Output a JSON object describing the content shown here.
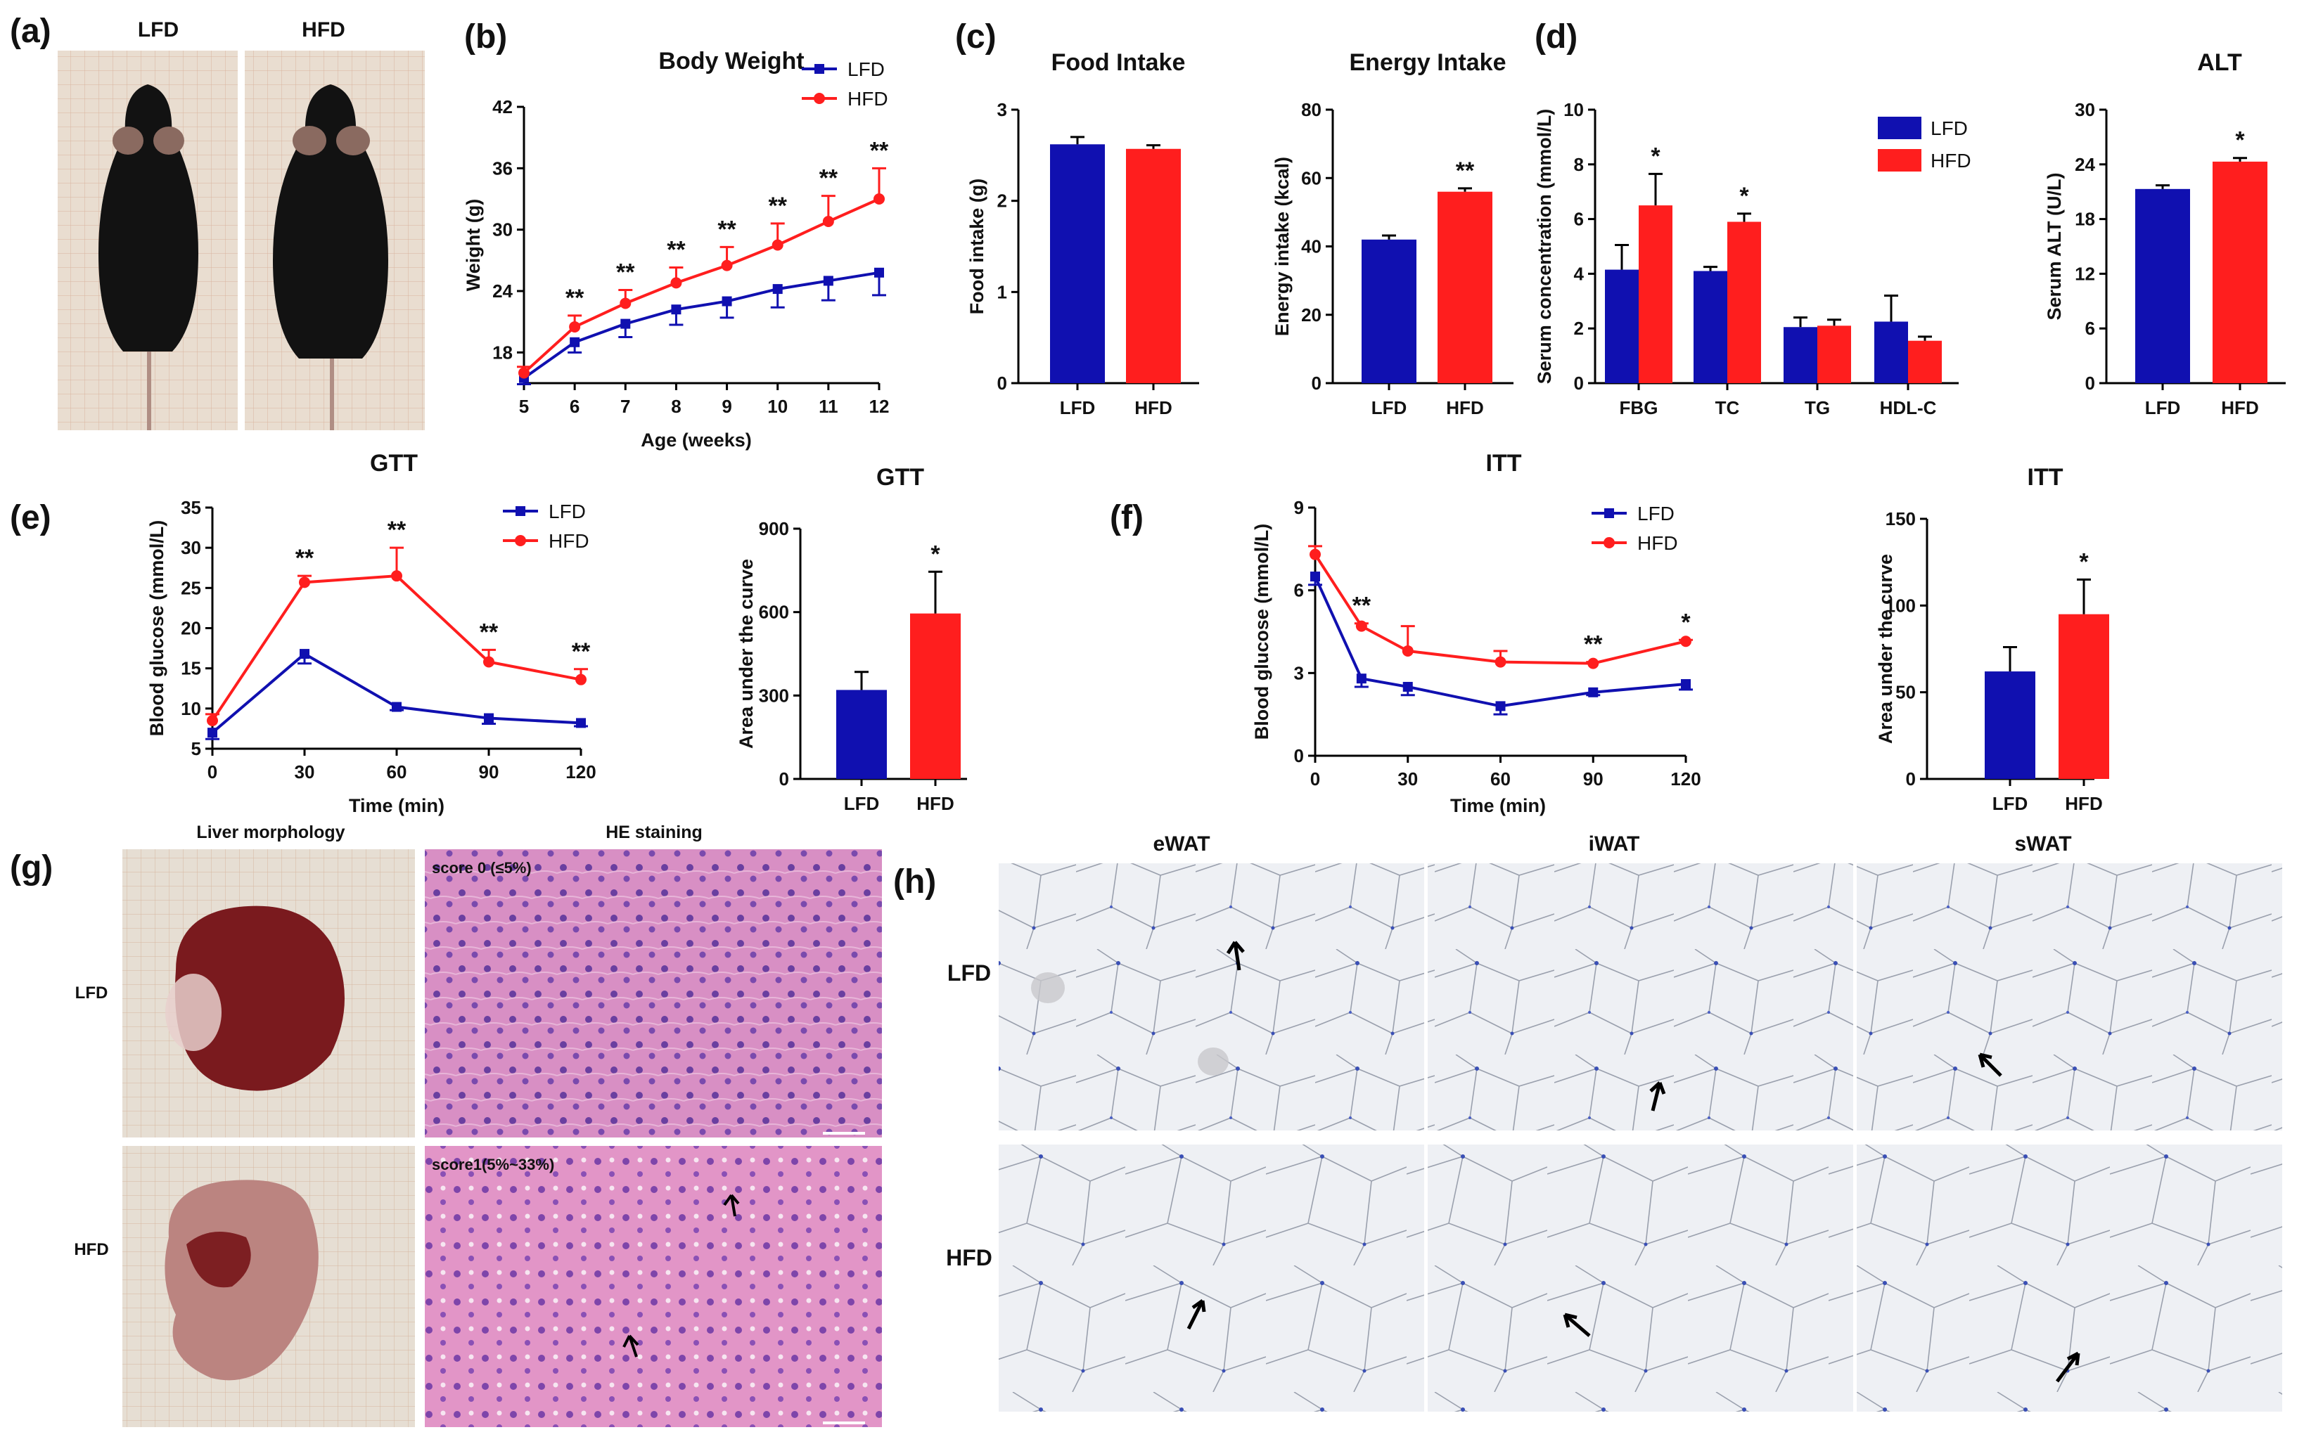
{
  "colors": {
    "lfd": "#1010b0",
    "hfd": "#ff1e1e",
    "axis": "#000000"
  },
  "panels": {
    "a": {
      "label": "(a)",
      "lfd": "LFD",
      "hfd": "HFD"
    },
    "b": {
      "label": "(b)"
    },
    "c": {
      "label": "(c)"
    },
    "d": {
      "label": "(d)"
    },
    "e": {
      "label": "(e)"
    },
    "f": {
      "label": "(f)"
    },
    "g": {
      "label": "(g)",
      "col1": "Liver morphology",
      "col2": "HE staining",
      "row1": "LFD",
      "row2": "HFD",
      "score0": "score 0 (≤5%)",
      "score1": "score1(5%~33%)"
    },
    "h": {
      "label": "(h)",
      "col1": "eWAT",
      "col2": "iWAT",
      "col3": "sWAT",
      "row1": "LFD",
      "row2": "HFD"
    }
  },
  "chart_data": [
    {
      "id": "body_weight",
      "type": "line",
      "title": "Body Weight",
      "xlabel": "Age (weeks)",
      "ylabel": "Weight (g)",
      "x": [
        5,
        6,
        7,
        8,
        9,
        10,
        11,
        12
      ],
      "xlim": [
        5,
        12
      ],
      "ylim": [
        15,
        42
      ],
      "yticks": [
        18,
        24,
        30,
        36,
        42
      ],
      "series": [
        {
          "name": "LFD",
          "values": [
            15.5,
            19.0,
            20.8,
            22.2,
            23.0,
            24.2,
            25.0,
            25.8
          ],
          "err": [
            0.6,
            1.0,
            1.3,
            1.5,
            1.6,
            1.8,
            1.9,
            2.2
          ]
        },
        {
          "name": "HFD",
          "values": [
            16.0,
            20.5,
            22.8,
            24.8,
            26.5,
            28.5,
            30.8,
            33.0
          ],
          "err": [
            0.6,
            1.1,
            1.3,
            1.5,
            1.8,
            2.1,
            2.5,
            3.0
          ]
        }
      ],
      "sig": [
        "",
        "**",
        "**",
        "**",
        "**",
        "**",
        "**",
        "**"
      ]
    },
    {
      "id": "food_intake",
      "type": "bar",
      "title": "Food Intake",
      "ylabel": "Food intake (g)",
      "categories": [
        "LFD",
        "HFD"
      ],
      "values": [
        2.62,
        2.57
      ],
      "err": [
        0.08,
        0.04
      ],
      "ylim": [
        0,
        3
      ],
      "yticks": [
        0,
        1,
        2,
        3
      ]
    },
    {
      "id": "energy_intake",
      "type": "bar",
      "title": "Energy Intake",
      "ylabel": "Energy intake (kcal)",
      "categories": [
        "LFD",
        "HFD"
      ],
      "values": [
        42,
        56
      ],
      "err": [
        1.2,
        1.0
      ],
      "ylim": [
        0,
        80
      ],
      "yticks": [
        0,
        20,
        40,
        60,
        80
      ],
      "sig": [
        "",
        "**"
      ]
    },
    {
      "id": "serum",
      "type": "bar",
      "title": "",
      "ylabel": "Serum concentration (mmol/L)",
      "categories": [
        "FBG",
        "TC",
        "TG",
        "HDL-C"
      ],
      "series": [
        {
          "name": "LFD",
          "values": [
            4.15,
            4.1,
            2.05,
            2.25
          ],
          "err": [
            0.9,
            0.15,
            0.35,
            0.95
          ]
        },
        {
          "name": "HFD",
          "values": [
            6.5,
            5.9,
            2.1,
            1.55
          ],
          "err": [
            1.15,
            0.3,
            0.22,
            0.15
          ]
        }
      ],
      "ylim": [
        0,
        10
      ],
      "yticks": [
        0,
        2,
        4,
        6,
        8,
        10
      ],
      "sig": [
        "*",
        "*",
        "",
        ""
      ]
    },
    {
      "id": "alt",
      "type": "bar",
      "title": "ALT",
      "ylabel": "Serum ALT (U/L)",
      "categories": [
        "LFD",
        "HFD"
      ],
      "values": [
        21.3,
        24.3
      ],
      "err": [
        0.4,
        0.4
      ],
      "ylim": [
        0,
        30
      ],
      "yticks": [
        0,
        6,
        12,
        18,
        24,
        30
      ],
      "sig": [
        "",
        "*"
      ]
    },
    {
      "id": "gtt",
      "type": "line",
      "title": "GTT",
      "xlabel": "Time (min)",
      "ylabel": "Blood glucose (mmol/L)",
      "x": [
        0,
        30,
        60,
        90,
        120
      ],
      "xlim": [
        0,
        120
      ],
      "ylim": [
        5,
        35
      ],
      "yticks": [
        5,
        10,
        15,
        20,
        25,
        30,
        35
      ],
      "series": [
        {
          "name": "LFD",
          "values": [
            7.0,
            16.8,
            10.2,
            8.8,
            8.2
          ],
          "err": [
            0.8,
            1.2,
            0.4,
            0.7,
            0.4
          ]
        },
        {
          "name": "HFD",
          "values": [
            8.5,
            25.7,
            26.5,
            15.8,
            13.6
          ],
          "err": [
            0.8,
            0.8,
            3.5,
            1.5,
            1.3
          ]
        }
      ],
      "sig": [
        "",
        "**",
        "**",
        "**",
        "**"
      ]
    },
    {
      "id": "gtt_auc",
      "type": "bar",
      "title": "GTT",
      "ylabel": "Area under the curve",
      "categories": [
        "LFD",
        "HFD"
      ],
      "values": [
        320,
        595
      ],
      "err": [
        65,
        150
      ],
      "ylim": [
        0,
        900
      ],
      "yticks": [
        0,
        300,
        600,
        900
      ],
      "sig": [
        "",
        "*"
      ]
    },
    {
      "id": "itt",
      "type": "line",
      "title": "ITT",
      "xlabel": "Time (min)",
      "ylabel": "Blood glucose (mmol/L)",
      "x": [
        0,
        15,
        30,
        60,
        90,
        120
      ],
      "xlim": [
        0,
        120
      ],
      "ylim": [
        0,
        9
      ],
      "yticks": [
        0,
        3,
        6,
        9
      ],
      "series": [
        {
          "name": "LFD",
          "values": [
            6.5,
            2.8,
            2.5,
            1.8,
            2.3,
            2.6
          ],
          "err": [
            0.3,
            0.3,
            0.3,
            0.3,
            0.1,
            0.2
          ]
        },
        {
          "name": "HFD",
          "values": [
            7.3,
            4.7,
            3.8,
            3.4,
            3.35,
            4.15
          ],
          "err": [
            0.3,
            0.1,
            0.9,
            0.4,
            0.05,
            0.05
          ]
        }
      ],
      "sig": [
        "",
        "**",
        "",
        "",
        "**",
        "*"
      ]
    },
    {
      "id": "itt_auc",
      "type": "bar",
      "title": "ITT",
      "ylabel": "Area under the curve",
      "categories": [
        "LFD",
        "HFD"
      ],
      "values": [
        62,
        95
      ],
      "err": [
        14,
        20
      ],
      "ylim": [
        0,
        150
      ],
      "yticks": [
        0,
        50,
        100,
        150
      ],
      "sig": [
        "",
        "*"
      ]
    }
  ]
}
